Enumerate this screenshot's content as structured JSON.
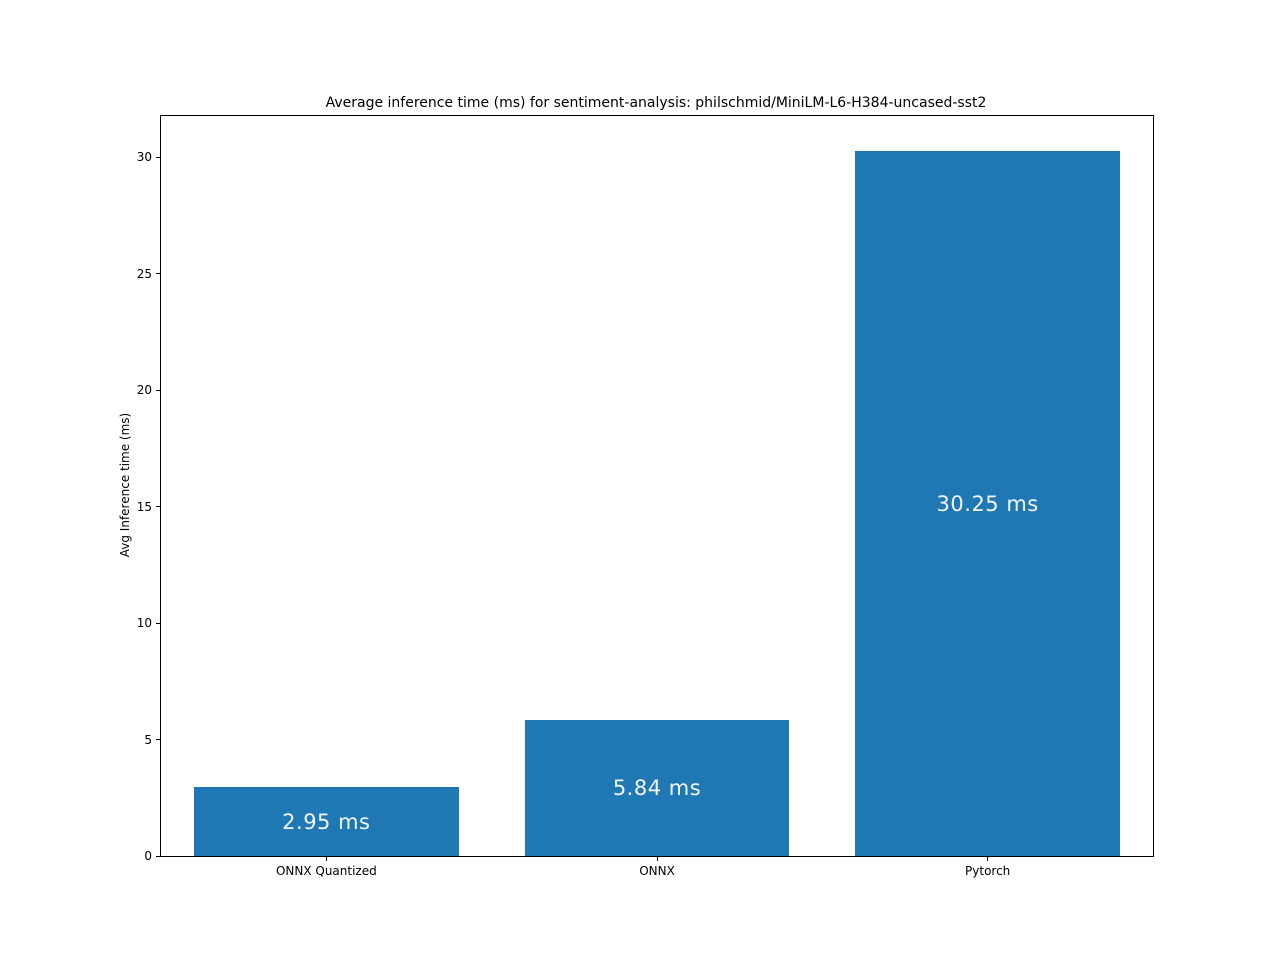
{
  "chart_data": {
    "type": "bar",
    "title": "Average inference time (ms) for sentiment-analysis: philschmid/MiniLM-L6-H384-uncased-sst2",
    "xlabel": "",
    "ylabel": "Avg Inference time (ms)",
    "categories": [
      "ONNX Quantized",
      "ONNX",
      "Pytorch"
    ],
    "values": [
      2.95,
      5.84,
      30.25
    ],
    "bar_labels": [
      "2.95 ms",
      "5.84 ms",
      "30.25 ms"
    ],
    "yticks": [
      0,
      5,
      10,
      15,
      20,
      25,
      30
    ],
    "ylim": [
      0,
      31.76
    ],
    "grid": false,
    "legend": null,
    "bar_color": "#1f77b4",
    "bar_label_color": "#f2f7fb",
    "axis_color": "#000000",
    "background_color": "#ffffff"
  }
}
